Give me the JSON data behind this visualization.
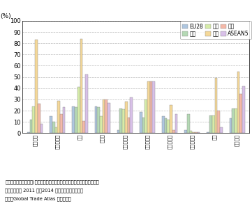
{
  "categories": [
    "鉄道部品",
    "トラクター",
    "バス",
    "乗用車",
    "貨物自動車",
    "自動車部品",
    "自転車部品",
    "航空機部品",
    "船舶",
    "船舶部品"
  ],
  "series": {
    "EU28": [
      1,
      15,
      24,
      24,
      3,
      19,
      15,
      3,
      1,
      13
    ],
    "米国": [
      12,
      10,
      23,
      23,
      22,
      14,
      13,
      17,
      16,
      22
    ],
    "中国": [
      24,
      5,
      41,
      15,
      21,
      30,
      12,
      2,
      16,
      22
    ],
    "台湾": [
      83,
      29,
      84,
      30,
      28,
      46,
      25,
      1,
      49,
      55
    ],
    "韓国": [
      26,
      17,
      11,
      30,
      14,
      46,
      3,
      1,
      20,
      35
    ],
    "ASEAN5": [
      8,
      23,
      52,
      27,
      32,
      46,
      17,
      1,
      5,
      42
    ]
  },
  "colors": {
    "EU28": "#aec6e0",
    "米国": "#b5d9b5",
    "中国": "#d6eca8",
    "台湾": "#f5d898",
    "韓国": "#f5b8a8",
    "ASEAN5": "#d8c0e8"
  },
  "ylim": [
    0,
    100
  ],
  "yticks": [
    0,
    10,
    20,
    30,
    40,
    50,
    60,
    70,
    80,
    90,
    100
  ],
  "ylabel": "(%)",
  "note_line1": "備考：輸入額シェア＝(各国・地域の対日本輸入額／各国・地域の対世界輸",
  "note_line2": "　　入額）の 2011 年～2014 年の総額を算術平均。",
  "note_line3": "資料：Global Trade Atlas から作成。"
}
